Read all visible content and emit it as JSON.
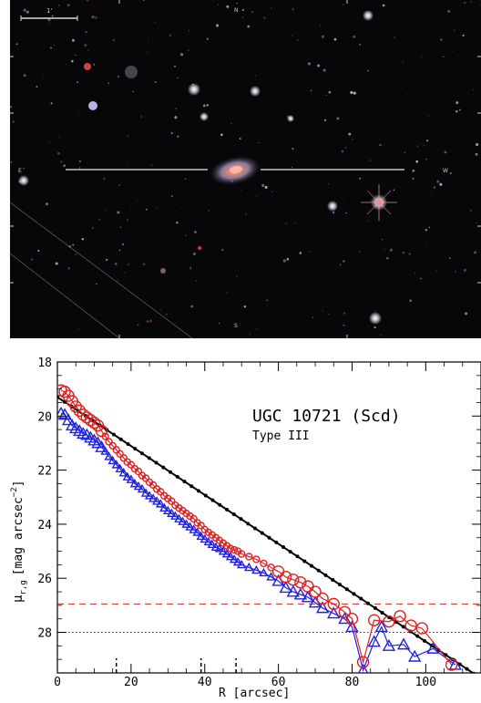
{
  "image": {
    "compass": {
      "north": "N",
      "east": "E",
      "west": "W",
      "south": "S"
    },
    "scale_bar_label": "1'"
  },
  "chart_data": {
    "type": "scatter",
    "title": "UGC 10721 (Scd)",
    "subtitle": "Type III",
    "xlabel": "R [arcsec]",
    "ylabel": "μr,g [mag arcsec⁻²]",
    "ylabel_main": "μ",
    "ylabel_sub": "r,g",
    "ylabel_unit": "[mag arcsec",
    "ylabel_exp": "−2",
    "ylabel_close": "]",
    "xlim": [
      0,
      115
    ],
    "ylim": [
      29.5,
      18
    ],
    "x_ticks": [
      "0",
      "20",
      "40",
      "60",
      "80",
      "100"
    ],
    "y_ticks": [
      "18",
      "20",
      "22",
      "24",
      "26",
      "28"
    ],
    "limit_lines": [
      {
        "series": "r-band",
        "y": 26.95,
        "style": "dashed",
        "color": "#e02020"
      },
      {
        "series": "g-band",
        "y": 28.0,
        "style": "dotted",
        "color": "#2020e0"
      }
    ],
    "break_markers_x": [
      16,
      39,
      48.5
    ],
    "series": [
      {
        "color": "#e02020",
        "marker": "circle",
        "x": [
          1,
          2,
          3,
          4,
          5,
          6,
          7,
          8,
          9,
          10,
          11,
          12,
          13,
          14,
          15,
          16,
          17,
          18,
          19,
          20,
          21,
          22,
          23,
          24,
          25,
          26,
          27,
          28,
          29,
          30,
          31,
          32,
          33,
          34,
          35,
          36,
          37,
          38,
          39,
          40,
          41,
          42,
          43,
          44,
          45,
          46,
          47,
          48,
          49,
          50,
          52,
          54,
          56,
          58,
          60,
          62,
          64,
          66,
          68,
          70,
          72,
          75,
          78,
          80,
          83,
          86,
          90,
          93,
          96,
          99,
          107
        ],
        "y": [
          19.05,
          19.1,
          19.25,
          19.45,
          19.65,
          19.8,
          19.95,
          20.05,
          20.15,
          20.25,
          20.35,
          20.55,
          20.75,
          20.95,
          21.1,
          21.25,
          21.4,
          21.55,
          21.7,
          21.8,
          21.95,
          22.05,
          22.2,
          22.3,
          22.45,
          22.55,
          22.7,
          22.8,
          22.95,
          23.05,
          23.15,
          23.3,
          23.4,
          23.5,
          23.6,
          23.7,
          23.8,
          23.95,
          24.05,
          24.2,
          24.3,
          24.4,
          24.5,
          24.6,
          24.7,
          24.8,
          24.9,
          24.95,
          25.0,
          25.1,
          25.2,
          25.3,
          25.45,
          25.6,
          25.75,
          25.95,
          26.05,
          26.15,
          26.3,
          26.5,
          26.75,
          26.95,
          27.25,
          27.5,
          29.1,
          27.55,
          27.6,
          27.4,
          27.75,
          27.85,
          29.2
        ]
      },
      {
        "color": "#2020e0",
        "marker": "triangle",
        "x": [
          1,
          2,
          3,
          4,
          5,
          6,
          7,
          8,
          9,
          10,
          11,
          12,
          13,
          14,
          15,
          16,
          17,
          18,
          19,
          20,
          21,
          22,
          23,
          24,
          25,
          26,
          27,
          28,
          29,
          30,
          31,
          32,
          33,
          34,
          35,
          36,
          37,
          38,
          39,
          40,
          41,
          42,
          43,
          44,
          45,
          46,
          47,
          48,
          49,
          50,
          52,
          54,
          56,
          58,
          60,
          62,
          64,
          66,
          68,
          70,
          72,
          75,
          78,
          80,
          83,
          86,
          88,
          90,
          94,
          97,
          102,
          108
        ],
        "y": [
          19.9,
          19.95,
          20.15,
          20.35,
          20.45,
          20.55,
          20.65,
          20.7,
          20.8,
          20.9,
          21.0,
          21.15,
          21.3,
          21.5,
          21.65,
          21.8,
          21.95,
          22.1,
          22.25,
          22.35,
          22.5,
          22.6,
          22.7,
          22.85,
          22.95,
          23.05,
          23.15,
          23.25,
          23.4,
          23.5,
          23.6,
          23.7,
          23.8,
          23.9,
          24.0,
          24.1,
          24.2,
          24.3,
          24.45,
          24.55,
          24.65,
          24.75,
          24.85,
          24.9,
          25.0,
          25.1,
          25.2,
          25.3,
          25.4,
          25.5,
          25.6,
          25.7,
          25.8,
          25.95,
          26.1,
          26.35,
          26.5,
          26.6,
          26.7,
          26.9,
          27.1,
          27.3,
          27.5,
          27.8,
          29.4,
          28.35,
          27.8,
          28.5,
          28.45,
          28.9,
          28.6,
          29.2
        ]
      },
      {
        "color": "#000000",
        "marker": "fit",
        "x": [
          0,
          115
        ],
        "y": [
          19.3,
          29.7
        ]
      }
    ]
  }
}
